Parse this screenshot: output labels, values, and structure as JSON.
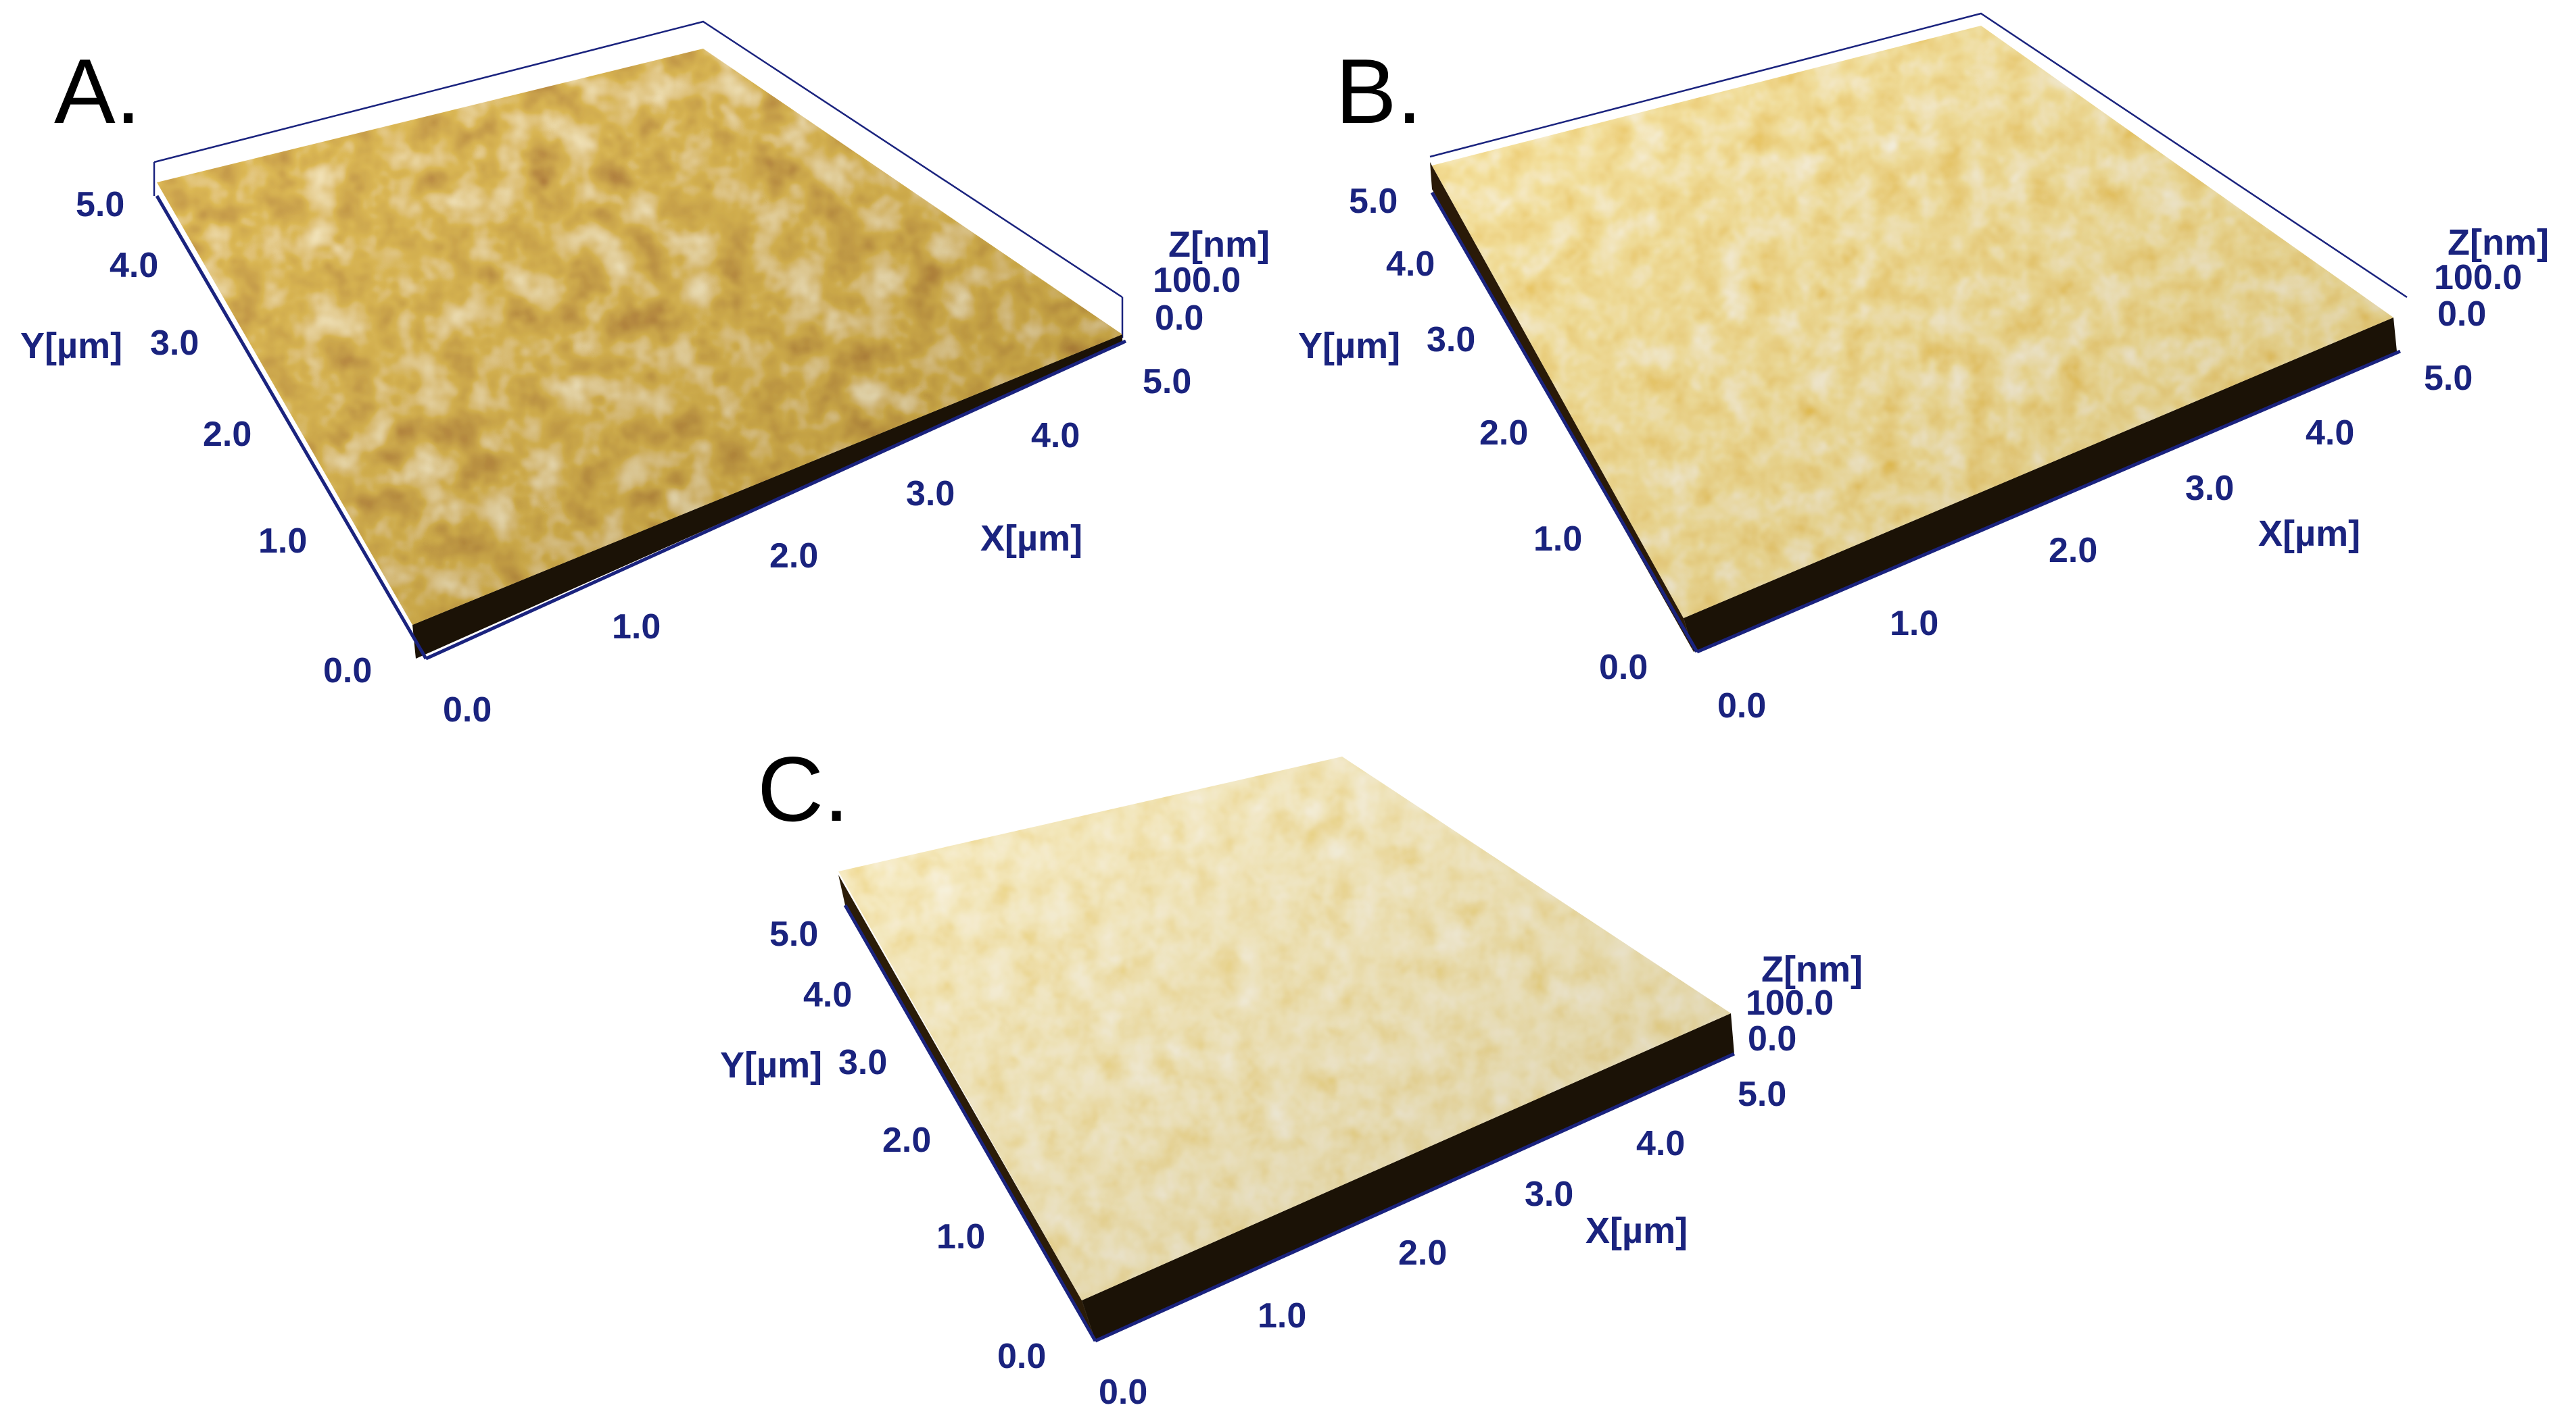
{
  "figure": {
    "panels": [
      {
        "label": "A.",
        "x_axis_title": "X[µm]",
        "y_axis_title": "Y[µm]",
        "z_axis_title": "Z[nm]",
        "x_ticks": [
          "0.0",
          "1.0",
          "2.0",
          "3.0",
          "4.0",
          "5.0"
        ],
        "y_ticks": [
          "0.0",
          "1.0",
          "2.0",
          "3.0",
          "4.0",
          "5.0"
        ],
        "z_ticks": [
          "0.0",
          "100.0"
        ],
        "colors": {
          "low": "#5a1e06",
          "mid": "#c0700c",
          "high": "#f2d48a",
          "peak": "#fbf3dc"
        }
      },
      {
        "label": "B.",
        "x_axis_title": "X[µm]",
        "y_axis_title": "Y[µm]",
        "z_axis_title": "Z[nm]",
        "x_ticks": [
          "0.0",
          "1.0",
          "2.0",
          "3.0",
          "4.0",
          "5.0"
        ],
        "y_ticks": [
          "0.0",
          "1.0",
          "2.0",
          "3.0",
          "4.0",
          "5.0"
        ],
        "z_ticks": [
          "0.0",
          "100.0"
        ],
        "colors": {
          "low": "#c4530a",
          "mid": "#d99a1c",
          "high": "#eed28a",
          "peak": "#f7f1e3"
        }
      },
      {
        "label": "C.",
        "x_axis_title": "X[µm]",
        "y_axis_title": "Y[µm]",
        "z_axis_title": "Z[nm]",
        "x_ticks": [
          "0.0",
          "1.0",
          "2.0",
          "3.0",
          "4.0",
          "5.0"
        ],
        "y_ticks": [
          "0.0",
          "1.0",
          "2.0",
          "3.0",
          "4.0",
          "5.0"
        ],
        "z_ticks": [
          "0.0",
          "100.0"
        ],
        "colors": {
          "low": "#cf8f16",
          "mid": "#e2b44a",
          "high": "#efdcaa",
          "peak": "#f8f2e4"
        }
      }
    ]
  }
}
